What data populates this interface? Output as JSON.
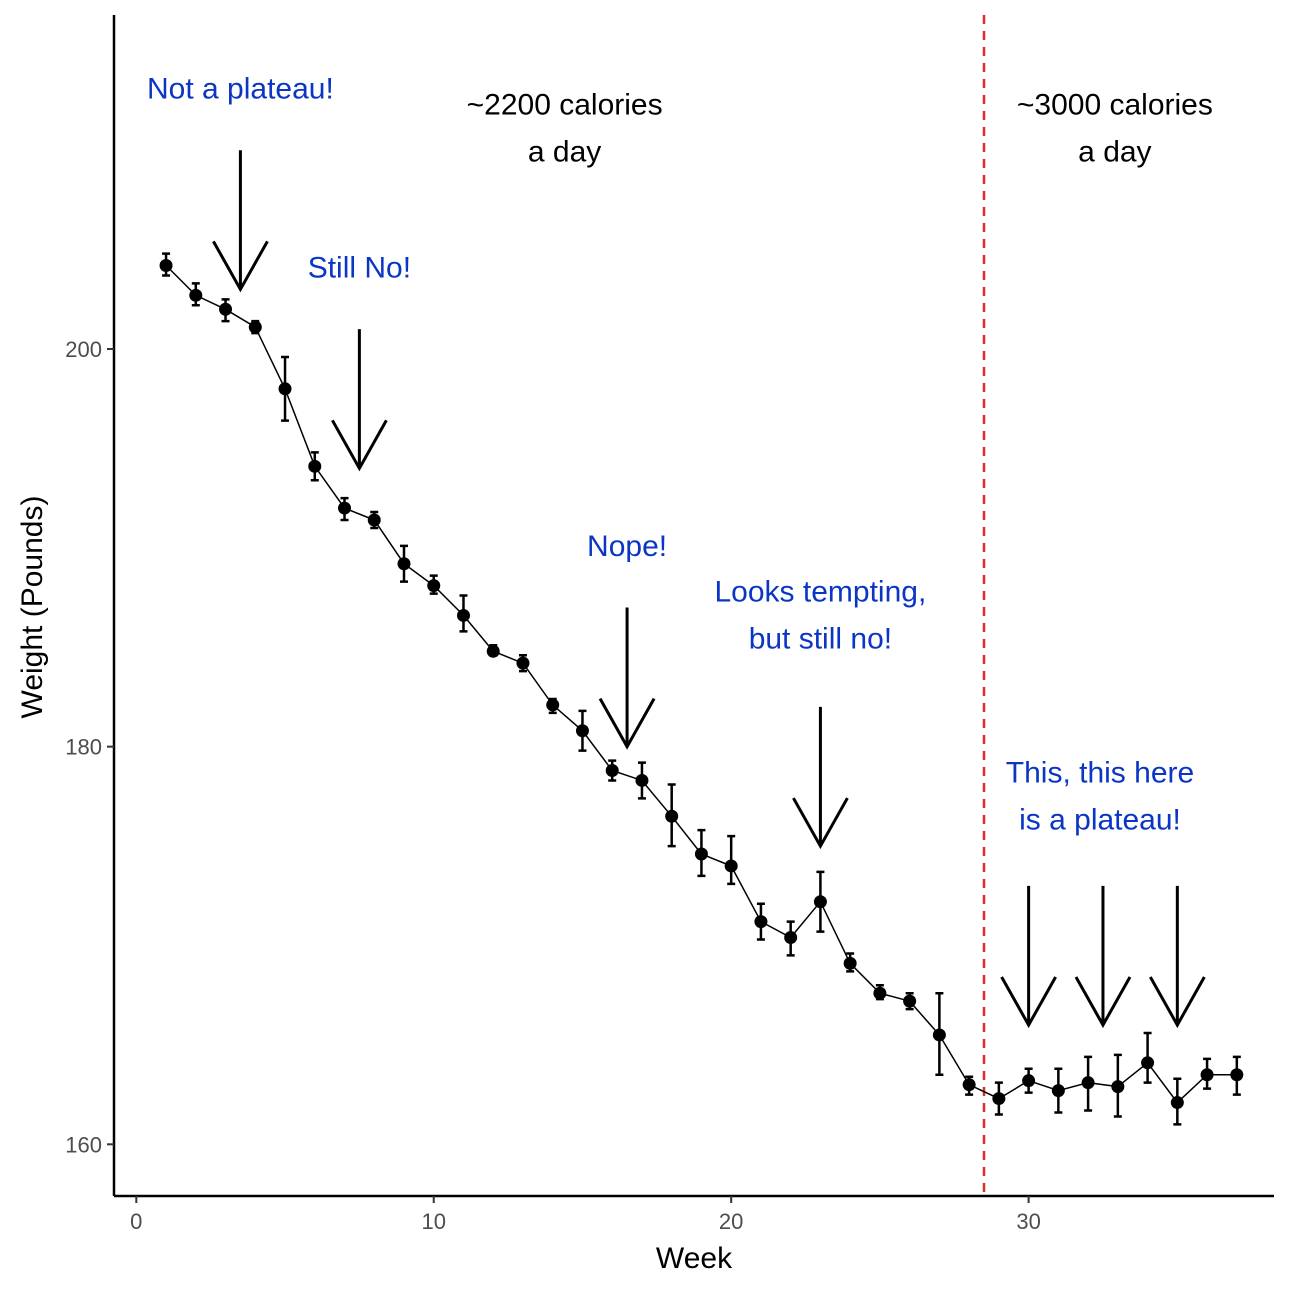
{
  "chart_data": {
    "type": "line",
    "title": "",
    "xlabel": "Week",
    "ylabel": "Weight (Pounds)",
    "xlim": [
      -0.75,
      38.25
    ],
    "ylim": [
      157.4,
      216.8
    ],
    "x_ticks": [
      0,
      10,
      20,
      30
    ],
    "y_ticks": [
      160,
      180,
      200
    ],
    "x_tick_labels": [
      "0",
      "10",
      "20",
      "30"
    ],
    "y_tick_labels": [
      "160",
      "180",
      "200"
    ],
    "grid": false,
    "series": [
      {
        "name": "Weight",
        "x": [
          1,
          2,
          3,
          4,
          5,
          6,
          7,
          8,
          9,
          10,
          11,
          12,
          13,
          14,
          15,
          16,
          17,
          18,
          19,
          20,
          21,
          22,
          23,
          24,
          25,
          26,
          27,
          28,
          29,
          30,
          31,
          32,
          33,
          34,
          35,
          36,
          37
        ],
        "values": [
          204.2,
          202.7,
          202.0,
          201.1,
          198.0,
          194.1,
          192.0,
          191.4,
          189.2,
          188.1,
          186.6,
          184.8,
          184.2,
          182.1,
          180.8,
          178.8,
          178.3,
          176.5,
          174.6,
          174.0,
          171.2,
          170.4,
          172.2,
          169.1,
          167.6,
          167.2,
          165.5,
          163.0,
          162.3,
          163.2,
          162.7,
          163.1,
          162.9,
          164.1,
          162.1,
          163.5,
          163.5
        ],
        "error_low": [
          203.7,
          202.2,
          201.4,
          200.8,
          196.4,
          193.4,
          191.4,
          191.0,
          188.3,
          187.7,
          185.8,
          184.6,
          183.8,
          181.7,
          179.8,
          178.3,
          177.4,
          175.0,
          173.5,
          173.1,
          170.3,
          169.5,
          170.7,
          168.7,
          167.3,
          166.8,
          163.5,
          162.5,
          161.5,
          162.6,
          161.6,
          161.7,
          161.4,
          163.1,
          161.0,
          162.8,
          162.5
        ],
        "error_high": [
          204.8,
          203.3,
          202.5,
          201.4,
          199.6,
          194.8,
          192.5,
          191.8,
          190.1,
          188.6,
          187.6,
          185.1,
          184.6,
          182.4,
          181.8,
          179.3,
          179.2,
          178.1,
          175.8,
          175.5,
          172.1,
          171.2,
          173.7,
          169.6,
          168.0,
          167.6,
          167.6,
          163.4,
          163.1,
          163.8,
          163.8,
          164.4,
          164.5,
          165.6,
          163.3,
          164.3,
          164.4
        ],
        "color": "#000000"
      }
    ],
    "threshold": {
      "x": 28.5,
      "color": "#d73027",
      "style": "dashed"
    },
    "annotations": [
      {
        "id": "region-2200",
        "lines": [
          "~2200 calories",
          "a day"
        ],
        "x": 14.4,
        "y": 211.8,
        "color": "#000000"
      },
      {
        "id": "region-3000",
        "lines": [
          "~3000 calories",
          "a day"
        ],
        "x": 32.9,
        "y": 211.8,
        "color": "#000000"
      },
      {
        "id": "not-plateau",
        "lines": [
          "Not a plateau!"
        ],
        "x": 3.5,
        "y": 212.6,
        "color": "#0b35c4",
        "arrow": {
          "x": 3.5,
          "y_start": 210.0,
          "y_end": 203.0
        }
      },
      {
        "id": "still-no",
        "lines": [
          "Still No!"
        ],
        "x": 7.5,
        "y": 203.6,
        "color": "#0b35c4",
        "arrow": {
          "x": 7.5,
          "y_start": 201.0,
          "y_end": 194.0
        }
      },
      {
        "id": "nope",
        "lines": [
          "Nope!"
        ],
        "x": 16.5,
        "y": 189.6,
        "color": "#0b35c4",
        "arrow": {
          "x": 16.5,
          "y_start": 187.0,
          "y_end": 180.0
        }
      },
      {
        "id": "looks-tempting",
        "lines": [
          "Looks tempting,",
          "but still no!"
        ],
        "x": 23.0,
        "y": 187.3,
        "color": "#0b35c4",
        "arrow": {
          "x": 23.0,
          "y_start": 182.0,
          "y_end": 175.0
        }
      },
      {
        "id": "this-plateau",
        "lines": [
          "This, this here",
          "is a plateau!"
        ],
        "x": 32.4,
        "y": 178.2,
        "color": "#0b35c4"
      }
    ],
    "extra_arrows": [
      {
        "x": 30.0,
        "y_start": 173.0,
        "y_end": 166.0
      },
      {
        "x": 32.5,
        "y_start": 173.0,
        "y_end": 166.0
      },
      {
        "x": 35.0,
        "y_start": 173.0,
        "y_end": 166.0
      }
    ]
  }
}
